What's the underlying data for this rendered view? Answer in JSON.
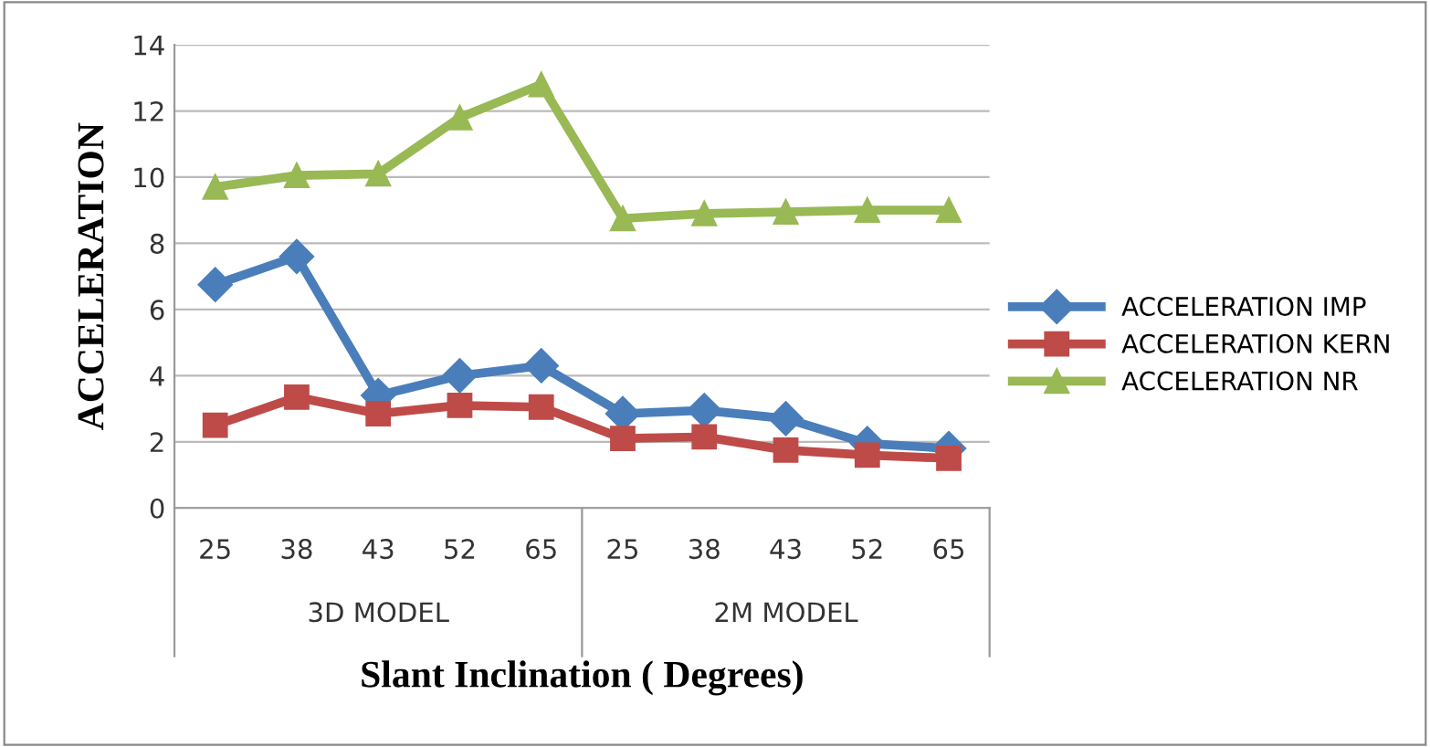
{
  "chart_data": {
    "type": "line",
    "xlabel": "Slant Inclination ( Degrees)",
    "ylabel": "ACCELERATION",
    "categories": [
      "25",
      "38",
      "43",
      "52",
      "65",
      "25",
      "38",
      "43",
      "52",
      "65"
    ],
    "annotations": [
      "3D MODEL",
      "2M MODEL"
    ],
    "series": [
      {
        "name": "ACCELERATION IMP",
        "color": "#4a7ebb",
        "marker": "diamond",
        "values": [
          6.75,
          7.6,
          3.4,
          4.0,
          4.3,
          2.85,
          2.95,
          2.7,
          1.95,
          1.8
        ]
      },
      {
        "name": "ACCELERATION KERN",
        "color": "#be4b48",
        "marker": "square",
        "values": [
          2.5,
          3.35,
          2.85,
          3.1,
          3.05,
          2.1,
          2.15,
          1.75,
          1.6,
          1.5
        ]
      },
      {
        "name": "ACCELERATION NR",
        "color": "#98b954",
        "marker": "triangle",
        "values": [
          9.7,
          10.05,
          10.1,
          11.8,
          12.8,
          8.75,
          8.9,
          8.95,
          9.0,
          9.0
        ]
      }
    ],
    "ylim": [
      0,
      14
    ],
    "yticks": [
      0,
      2,
      4,
      6,
      8,
      10,
      12,
      14
    ],
    "grid": "y",
    "legend": "right"
  }
}
